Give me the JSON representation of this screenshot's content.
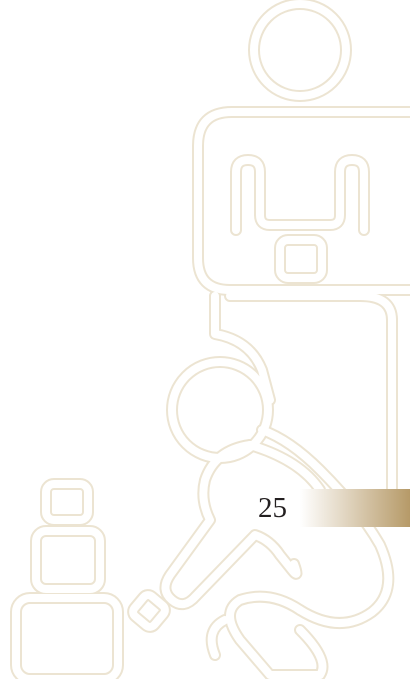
{
  "page_number": "25"
}
